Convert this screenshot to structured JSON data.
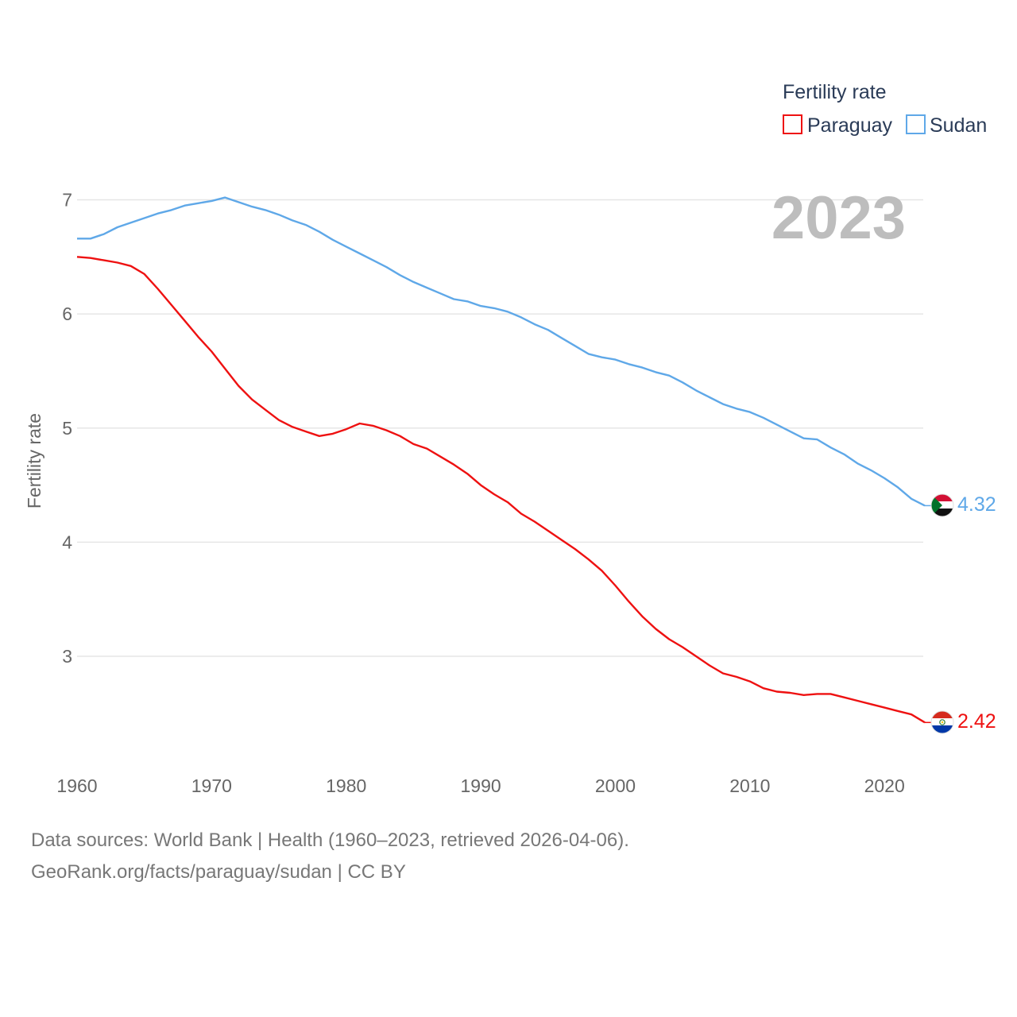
{
  "chart_data": {
    "type": "line",
    "title": "",
    "legend_title": "Fertility rate",
    "legend_placement": "top-right",
    "current_year_label": "2023",
    "xlabel": "",
    "ylabel": "Fertility rate",
    "xlim": [
      1960,
      2023
    ],
    "ylim": [
      2.1,
      7.35
    ],
    "x_ticks": [
      1960,
      1970,
      1980,
      1990,
      2000,
      2010,
      2020
    ],
    "y_ticks": [
      3,
      4,
      5,
      6,
      7
    ],
    "grid": true,
    "x": [
      1960,
      1961,
      1962,
      1963,
      1964,
      1965,
      1966,
      1967,
      1968,
      1969,
      1970,
      1971,
      1972,
      1973,
      1974,
      1975,
      1976,
      1977,
      1978,
      1979,
      1980,
      1981,
      1982,
      1983,
      1984,
      1985,
      1986,
      1987,
      1988,
      1989,
      1990,
      1991,
      1992,
      1993,
      1994,
      1995,
      1996,
      1997,
      1998,
      1999,
      2000,
      2001,
      2002,
      2003,
      2004,
      2005,
      2006,
      2007,
      2008,
      2009,
      2010,
      2011,
      2012,
      2013,
      2014,
      2015,
      2016,
      2017,
      2018,
      2019,
      2020,
      2021,
      2022,
      2023
    ],
    "series": [
      {
        "name": "Paraguay",
        "color": "#ee1111",
        "end_label": "2.42",
        "flag": "paraguay-flag",
        "values": [
          6.5,
          6.49,
          6.47,
          6.45,
          6.42,
          6.35,
          6.22,
          6.08,
          5.94,
          5.8,
          5.67,
          5.52,
          5.37,
          5.25,
          5.16,
          5.07,
          5.01,
          4.97,
          4.93,
          4.95,
          4.99,
          5.04,
          5.02,
          4.98,
          4.93,
          4.86,
          4.82,
          4.75,
          4.68,
          4.6,
          4.5,
          4.42,
          4.35,
          4.25,
          4.18,
          4.1,
          4.02,
          3.94,
          3.85,
          3.75,
          3.62,
          3.48,
          3.35,
          3.24,
          3.15,
          3.08,
          3.0,
          2.92,
          2.85,
          2.82,
          2.78,
          2.72,
          2.69,
          2.68,
          2.66,
          2.67,
          2.67,
          2.64,
          2.61,
          2.58,
          2.55,
          2.52,
          2.49,
          2.42
        ]
      },
      {
        "name": "Sudan",
        "color": "#5fa8e8",
        "end_label": "4.32",
        "flag": "sudan-flag",
        "values": [
          6.66,
          6.66,
          6.7,
          6.76,
          6.8,
          6.84,
          6.88,
          6.91,
          6.95,
          6.97,
          6.99,
          7.02,
          6.98,
          6.94,
          6.91,
          6.87,
          6.82,
          6.78,
          6.72,
          6.65,
          6.59,
          6.53,
          6.47,
          6.41,
          6.34,
          6.28,
          6.23,
          6.18,
          6.13,
          6.11,
          6.07,
          6.05,
          6.02,
          5.97,
          5.91,
          5.86,
          5.79,
          5.72,
          5.65,
          5.62,
          5.6,
          5.56,
          5.53,
          5.49,
          5.46,
          5.4,
          5.33,
          5.27,
          5.21,
          5.17,
          5.14,
          5.09,
          5.03,
          4.97,
          4.91,
          4.9,
          4.83,
          4.77,
          4.69,
          4.63,
          4.56,
          4.48,
          4.38,
          4.32
        ]
      }
    ]
  },
  "source": {
    "line1": "Data sources: World Bank | Health (1960–2023, retrieved 2026-04-06).",
    "line2": "GeoRank.org/facts/paraguay/sudan | CC BY"
  }
}
